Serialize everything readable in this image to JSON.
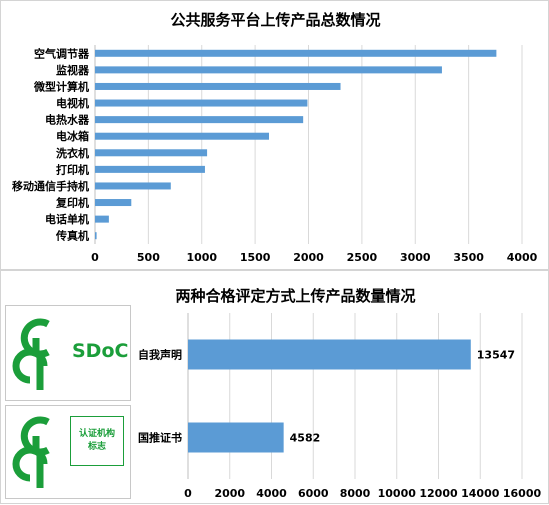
{
  "colors": {
    "bar": "#5b9bd5",
    "grid": "#d9d9d9",
    "logo_green": "#1b9e3a"
  },
  "chart_data": [
    {
      "type": "bar",
      "orientation": "horizontal",
      "title": "公共服务平台上传产品总数情况",
      "categories": [
        "空气调节器",
        "监视器",
        "微型计算机",
        "电视机",
        "电热水器",
        "电冰箱",
        "洗衣机",
        "打印机",
        "移动通信手持机",
        "复印机",
        "电话单机",
        "传真机"
      ],
      "values": [
        3760,
        3250,
        2300,
        1990,
        1950,
        1630,
        1050,
        1030,
        710,
        340,
        130,
        15
      ],
      "xlim": [
        0,
        4000
      ],
      "xticks": [
        "0",
        "500",
        "1000",
        "1500",
        "2000",
        "2500",
        "3000",
        "3500",
        "4000"
      ],
      "grid": true,
      "legend": false
    },
    {
      "type": "bar",
      "orientation": "horizontal",
      "title": "两种合格评定方式上传产品数量情况",
      "categories": [
        "自我声明",
        "国推证书"
      ],
      "values": [
        13547,
        4582
      ],
      "data_labels": [
        "13547",
        "4582"
      ],
      "xlim": [
        0,
        16000
      ],
      "xticks": [
        "0",
        "2000",
        "4000",
        "6000",
        "8000",
        "10000",
        "12000",
        "14000",
        "16000"
      ],
      "grid": true,
      "legend": false
    }
  ],
  "logos": {
    "sdoc_text": "SDoC",
    "cert_line1": "认证机构",
    "cert_line2": "标志",
    "icon": "ccp-logo-icon"
  }
}
